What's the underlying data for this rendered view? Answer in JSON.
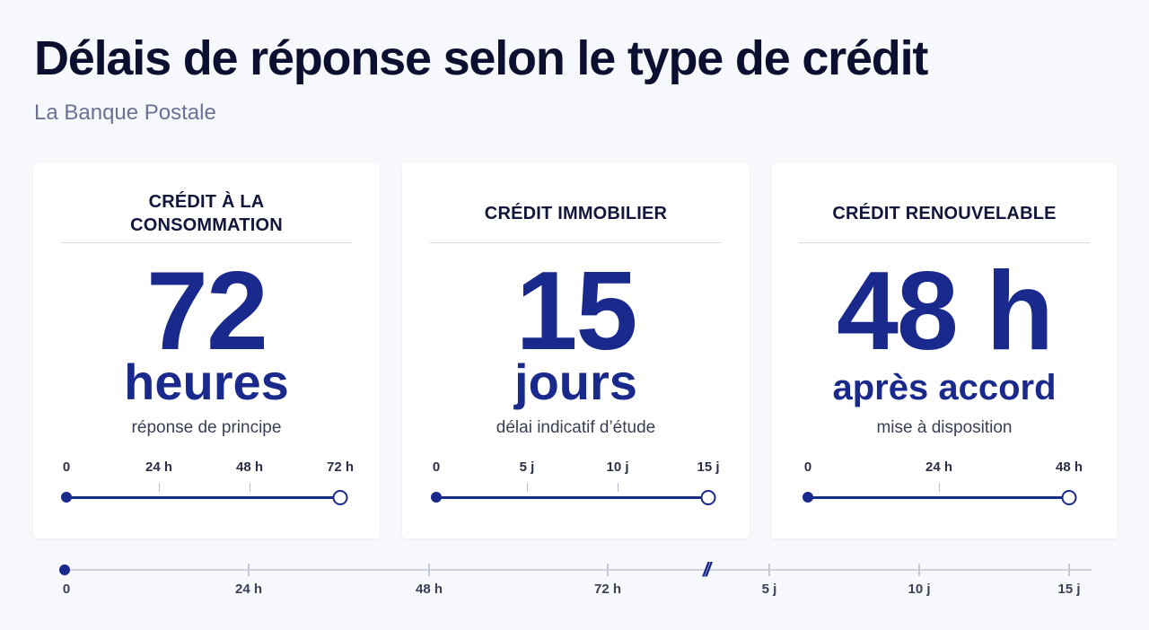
{
  "header": {
    "title": "Délais de réponse selon le type de crédit",
    "subtitle": "La Banque Postale"
  },
  "cards": [
    {
      "heading": "CRÉDIT À LA CONSOMMATION",
      "value": "72",
      "unit": "heures",
      "note": "réponse de principe",
      "scale": {
        "ticks": [
          "0",
          "24 h",
          "48 h",
          "72 h"
        ],
        "progress": 1.0
      }
    },
    {
      "heading": "CRÉDIT IMMOBILIER",
      "value": "15",
      "unit": "jours",
      "note": "délai indicatif d’étude",
      "scale": {
        "ticks": [
          "0",
          "5 j",
          "10 j",
          "15 j"
        ],
        "progress": 1.0
      }
    },
    {
      "heading": "CRÉDIT RENOUVELABLE",
      "value": "48 h",
      "unit": "après accord",
      "note": "mise à disposition",
      "scale": {
        "ticks": [
          "0",
          "24 h",
          "48 h"
        ],
        "progress": 1.0
      }
    }
  ],
  "timeline": {
    "labels": [
      "0",
      "24 h",
      "48 h",
      "72 h",
      "5 j",
      "10 j",
      "15 j"
    ],
    "break_marker": "//"
  },
  "colors": {
    "accent": "#1a2a8c",
    "background": "#f7f8fb",
    "card": "#ffffff"
  }
}
